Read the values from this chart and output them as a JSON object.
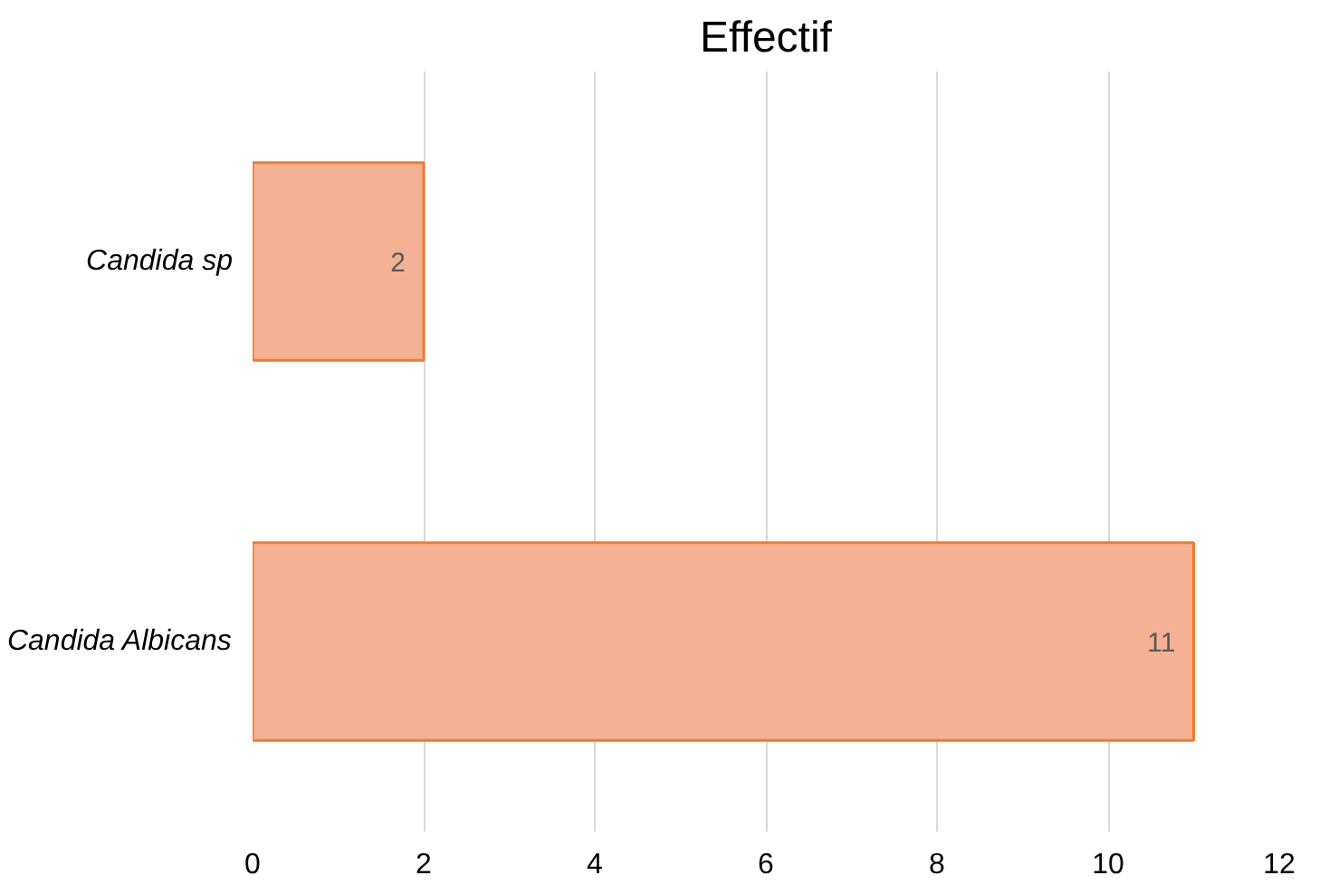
{
  "chart_data": {
    "type": "bar",
    "orientation": "horizontal",
    "title": "Effectif",
    "categories": [
      "Candida sp",
      "Candida Albicans"
    ],
    "values": [
      2,
      11
    ],
    "color": "#f4b193",
    "xlim": [
      0,
      12
    ],
    "xticks": [
      0,
      2,
      4,
      6,
      8,
      10,
      12
    ],
    "grid": "x",
    "data_labels": true
  }
}
